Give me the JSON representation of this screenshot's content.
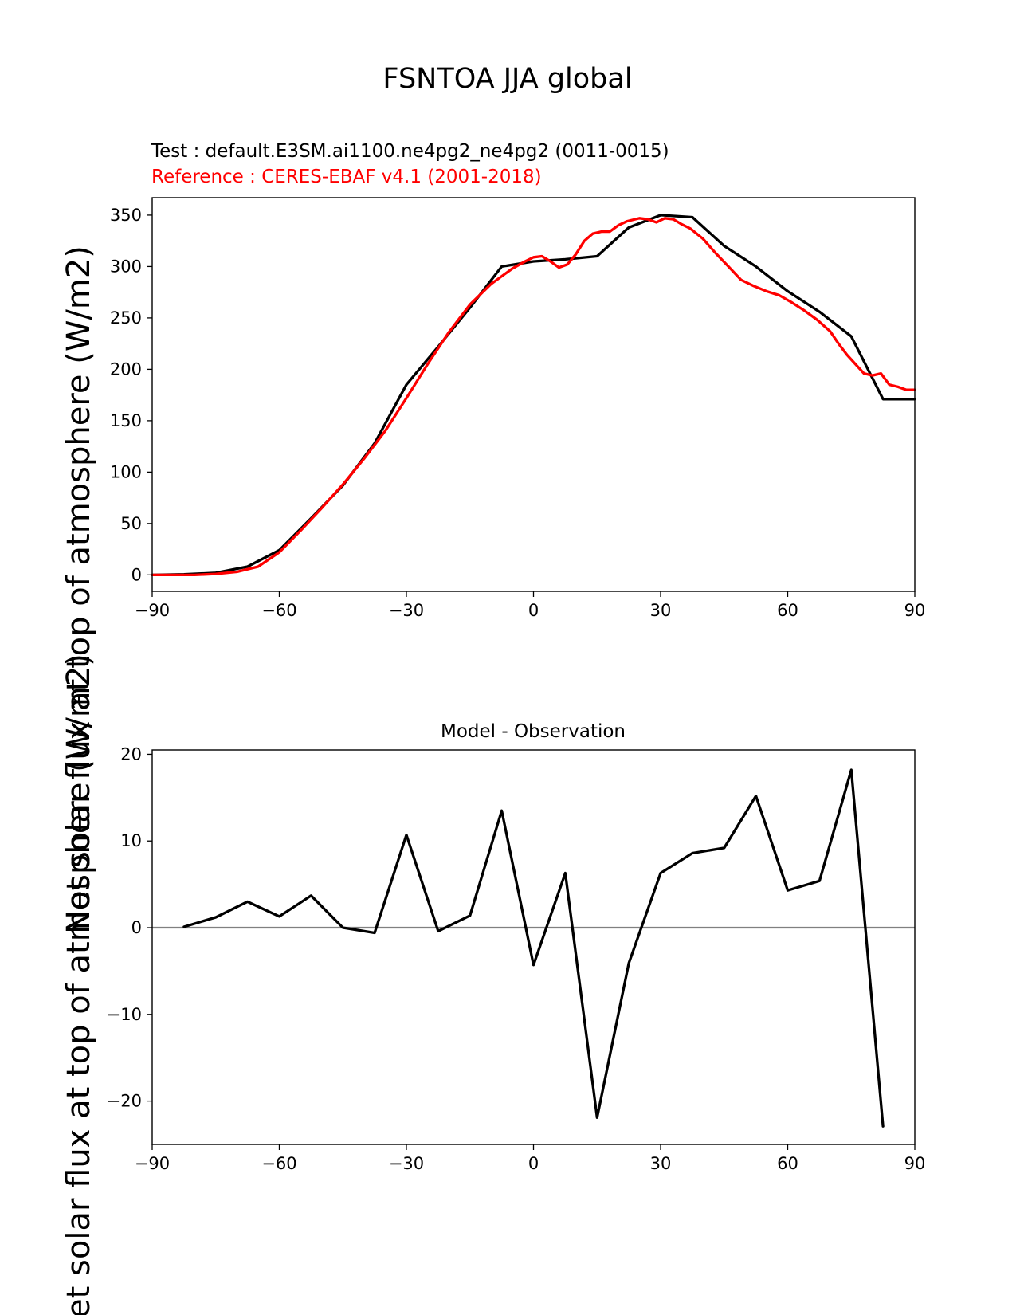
{
  "figure": {
    "title": "FSNTOA JJA global",
    "ylabel": "Net solar flux at top of atmosphere (W/m2)"
  },
  "colors": {
    "test": "#000000",
    "reference": "#ff0000",
    "zero_line": "#808080"
  },
  "chart_data": [
    {
      "type": "line",
      "test_label": "Test : default.E3SM.ai1100.ne4pg2_ne4pg2 (0011-0015)",
      "reference_label": "Reference : CERES-EBAF v4.1 (2001-2018)",
      "xlim": [
        -90,
        90
      ],
      "ylim": [
        -16,
        367
      ],
      "xticks": [
        -90,
        -60,
        -30,
        0,
        30,
        60,
        90
      ],
      "yticks": [
        0,
        50,
        100,
        150,
        200,
        250,
        300,
        350
      ],
      "series": [
        {
          "key": "test",
          "x": [
            -90,
            -82.5,
            -75,
            -67.5,
            -60,
            -52.5,
            -45,
            -37.5,
            -30,
            -22.5,
            -15,
            -7.5,
            0,
            7.5,
            15,
            22.5,
            30,
            37.5,
            45,
            52.5,
            60,
            67.5,
            75,
            82.5,
            90
          ],
          "y": [
            0,
            0.5,
            2,
            8,
            24,
            55,
            87,
            128,
            185,
            222,
            260,
            300,
            305,
            307,
            310,
            338,
            350,
            348,
            320,
            300,
            276,
            256,
            232,
            171,
            171
          ]
        },
        {
          "key": "reference",
          "x": [
            -90,
            -85,
            -80,
            -75,
            -70,
            -65,
            -60,
            -55,
            -50,
            -45,
            -40,
            -35,
            -30,
            -25,
            -20,
            -15,
            -10,
            -5,
            -2,
            0,
            2,
            4,
            6,
            8,
            10,
            12,
            14,
            16,
            18,
            20,
            22,
            25,
            27,
            29,
            31,
            33,
            35,
            37,
            40,
            43,
            46,
            49,
            52,
            55,
            58,
            61,
            64,
            67,
            70,
            72,
            74,
            76,
            78,
            80,
            82,
            84,
            86,
            88,
            90
          ],
          "y": [
            0,
            0,
            0,
            1,
            3,
            8,
            22,
            43,
            65,
            88,
            113,
            140,
            172,
            205,
            236,
            263,
            283,
            298,
            305,
            309,
            310,
            305,
            299,
            302,
            312,
            325,
            332,
            334,
            334,
            340,
            344,
            347,
            346,
            343,
            347,
            346,
            341,
            337,
            327,
            313,
            300,
            287,
            281,
            276,
            272,
            265,
            257,
            248,
            237,
            225,
            214,
            205,
            196,
            194,
            196,
            185,
            183,
            180,
            180
          ]
        }
      ]
    },
    {
      "type": "line",
      "title": "Model - Observation",
      "xlim": [
        -90,
        90
      ],
      "ylim": [
        -25,
        20.5
      ],
      "xticks": [
        -90,
        -60,
        -30,
        0,
        30,
        60,
        90
      ],
      "yticks": [
        -20,
        -10,
        0,
        10,
        20
      ],
      "zero_line": 0,
      "series": [
        {
          "key": "test",
          "x": [
            -82.5,
            -75,
            -67.5,
            -60,
            -52.5,
            -45,
            -37.5,
            -30,
            -22.5,
            -15,
            -7.5,
            0,
            7.5,
            15,
            22.5,
            30,
            37.5,
            45,
            52.5,
            60,
            67.5,
            75,
            82.5
          ],
          "y": [
            0.1,
            1.2,
            3,
            1.3,
            3.7,
            0,
            -0.6,
            10.7,
            -0.4,
            1.4,
            13.5,
            -4.3,
            6.3,
            -21.9,
            -4.1,
            6.3,
            8.6,
            9.2,
            15.2,
            4.3,
            5.4,
            18.2,
            -22.9
          ]
        }
      ]
    }
  ]
}
